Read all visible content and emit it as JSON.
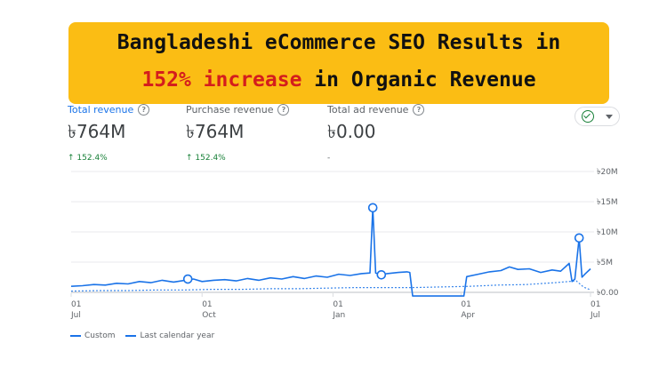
{
  "headline": {
    "line1": "Bangladeshi eCommerce SEO Results in",
    "line2_accent": "152% increase",
    "line2_rest": " in Organic Revenue"
  },
  "metrics": [
    {
      "label": "Total revenue",
      "value": "৳764M",
      "change": "↑ 152.4%",
      "active": true
    },
    {
      "label": "Purchase revenue",
      "value": "৳764M",
      "change": "↑ 152.4%",
      "active": false
    },
    {
      "label": "Total ad revenue",
      "value": "৳0.00",
      "change": "-",
      "active": false
    }
  ],
  "status": {
    "icon": "check-circle-icon",
    "menu_icon": "caret-down-icon"
  },
  "colors": {
    "accent": "#1a73e8",
    "banner": "#fbbd14",
    "highlight": "#d41d1d",
    "positive": "#188038"
  },
  "chart_data": {
    "type": "line",
    "y_ticks": [
      "৳20M",
      "৳15M",
      "৳10M",
      "৳5M",
      "৳0.00"
    ],
    "ylim": [
      0,
      20
    ],
    "y_unit": "M",
    "x_ticks": [
      {
        "day": "01",
        "month": "Jul",
        "t": 0
      },
      {
        "day": "01",
        "month": "Oct",
        "t": 92
      },
      {
        "day": "01",
        "month": "Jan",
        "t": 184
      },
      {
        "day": "01",
        "month": "Apr",
        "t": 274
      },
      {
        "day": "01",
        "month": "Jul",
        "t": 365
      }
    ],
    "grid": true,
    "legend_position": "bottom-left",
    "series": [
      {
        "name": "Custom",
        "style": "solid",
        "points": [
          [
            0,
            1.0
          ],
          [
            8,
            1.1
          ],
          [
            16,
            1.3
          ],
          [
            24,
            1.2
          ],
          [
            32,
            1.5
          ],
          [
            40,
            1.4
          ],
          [
            48,
            1.8
          ],
          [
            56,
            1.6
          ],
          [
            64,
            2.0
          ],
          [
            72,
            1.7
          ],
          [
            80,
            2.0
          ],
          [
            86,
            2.2
          ],
          [
            92,
            1.8
          ],
          [
            100,
            2.0
          ],
          [
            108,
            2.1
          ],
          [
            116,
            1.9
          ],
          [
            124,
            2.3
          ],
          [
            132,
            2.0
          ],
          [
            140,
            2.4
          ],
          [
            148,
            2.2
          ],
          [
            156,
            2.6
          ],
          [
            164,
            2.3
          ],
          [
            172,
            2.7
          ],
          [
            180,
            2.5
          ],
          [
            188,
            3.0
          ],
          [
            196,
            2.8
          ],
          [
            204,
            3.1
          ],
          [
            210,
            3.2
          ],
          [
            212,
            14.0
          ],
          [
            214,
            3.2
          ],
          [
            218,
            2.9
          ],
          [
            222,
            3.1
          ],
          [
            230,
            3.3
          ],
          [
            236,
            3.4
          ],
          [
            238,
            3.3
          ],
          [
            240,
            -0.6
          ],
          [
            250,
            -0.6
          ],
          [
            260,
            -0.6
          ],
          [
            270,
            -0.6
          ],
          [
            276,
            -0.6
          ],
          [
            278,
            2.6
          ],
          [
            286,
            3.0
          ],
          [
            294,
            3.4
          ],
          [
            302,
            3.6
          ],
          [
            308,
            4.2
          ],
          [
            314,
            3.8
          ],
          [
            322,
            3.9
          ],
          [
            330,
            3.3
          ],
          [
            338,
            3.7
          ],
          [
            344,
            3.5
          ],
          [
            350,
            4.8
          ],
          [
            352,
            1.8
          ],
          [
            354,
            2.2
          ],
          [
            357,
            9.0
          ],
          [
            359,
            2.5
          ],
          [
            361,
            3.0
          ],
          [
            365,
            3.9
          ]
        ],
        "markers": [
          [
            82,
            2.2
          ],
          [
            212,
            14.0
          ],
          [
            218,
            2.9
          ],
          [
            357,
            9.0
          ]
        ]
      },
      {
        "name": "Last calendar year",
        "style": "dashed",
        "points": [
          [
            0,
            0.2
          ],
          [
            20,
            0.3
          ],
          [
            40,
            0.3
          ],
          [
            60,
            0.4
          ],
          [
            80,
            0.4
          ],
          [
            100,
            0.5
          ],
          [
            120,
            0.5
          ],
          [
            140,
            0.6
          ],
          [
            160,
            0.6
          ],
          [
            180,
            0.7
          ],
          [
            200,
            0.8
          ],
          [
            220,
            0.8
          ],
          [
            240,
            0.8
          ],
          [
            260,
            0.9
          ],
          [
            280,
            1.0
          ],
          [
            300,
            1.2
          ],
          [
            320,
            1.3
          ],
          [
            340,
            1.6
          ],
          [
            355,
            1.9
          ],
          [
            360,
            0.9
          ],
          [
            365,
            0.4
          ]
        ]
      }
    ]
  },
  "legend": [
    {
      "label": "Custom",
      "style": "solid"
    },
    {
      "label": "Last calendar year",
      "style": "dashed"
    }
  ]
}
